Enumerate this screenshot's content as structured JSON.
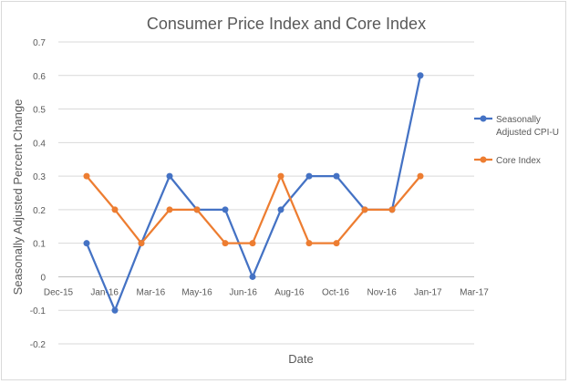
{
  "chart_data": {
    "type": "line",
    "title": "Consumer Price Index and Core Index",
    "xlabel": "Date",
    "ylabel": "Seasonally Adjusted Percent Change",
    "x_tick_labels": [
      "Dec-15",
      "Jan-16",
      "Mar-16",
      "May-16",
      "Jun-16",
      "Aug-16",
      "Oct-16",
      "Nov-16",
      "Jan-17",
      "Mar-17"
    ],
    "y_tick_labels": [
      "0.7",
      "0.6",
      "0.5",
      "0.4",
      "0.3",
      "0.2",
      "0.1",
      "0",
      "-0.1",
      "-0.2"
    ],
    "ylim": [
      -0.2,
      0.7
    ],
    "xlim": [
      "2015-12-01",
      "2017-03-01"
    ],
    "grid": true,
    "legend_position": "right",
    "x": [
      "2016-01-01",
      "2016-02-01",
      "2016-03-01",
      "2016-04-01",
      "2016-05-01",
      "2016-06-01",
      "2016-07-01",
      "2016-08-01",
      "2016-09-01",
      "2016-10-01",
      "2016-11-01",
      "2016-12-01",
      "2017-01-01"
    ],
    "series": [
      {
        "name": "Seasonally Adjusted CPI-U",
        "legend_lines": [
          "Seasonally",
          "Adjusted CPI-U"
        ],
        "color": "#4472c4",
        "values": [
          0.1,
          -0.1,
          0.1,
          0.3,
          0.2,
          0.2,
          0.0,
          0.2,
          0.3,
          0.3,
          0.2,
          0.2,
          0.6
        ]
      },
      {
        "name": "Core Index",
        "legend_lines": [
          "Core Index"
        ],
        "color": "#ed7d31",
        "values": [
          0.3,
          0.2,
          0.1,
          0.2,
          0.2,
          0.1,
          0.1,
          0.3,
          0.1,
          0.1,
          0.2,
          0.2,
          0.3
        ]
      }
    ]
  }
}
